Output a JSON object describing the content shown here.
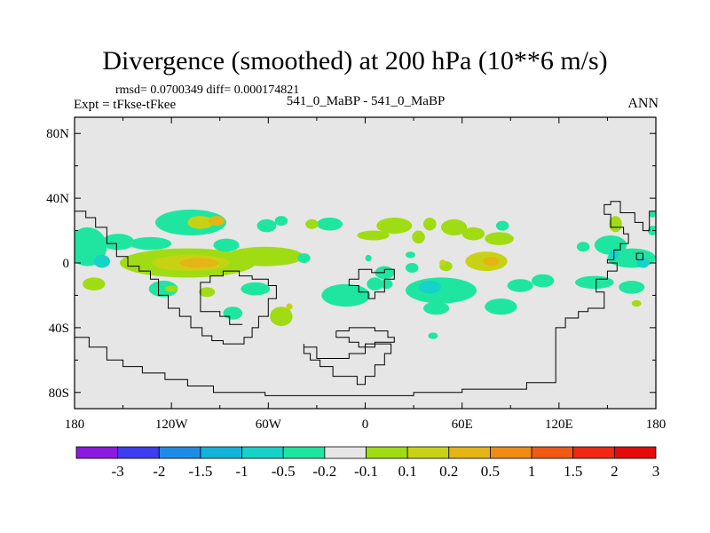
{
  "title": "Divergence (smoothed) at 200 hPa (10**6 m/s)",
  "stats": "rmsd= 0.0700349 diff= 0.000174821",
  "experiment": "Expt = tFkse-tFkee",
  "case": "541_0_MaBP - 541_0_MaBP",
  "season": "ANN",
  "chart_data": {
    "type": "heatmap",
    "title": "Divergence (smoothed) at 200 hPa (10**6 m/s)",
    "projection": "cylindrical-equidistant",
    "xlim": [
      -180,
      180
    ],
    "ylim": [
      -90,
      90
    ],
    "x_ticks": [
      {
        "value": -180,
        "label": "180"
      },
      {
        "value": -120,
        "label": "120W"
      },
      {
        "value": -60,
        "label": "60W"
      },
      {
        "value": 0,
        "label": "0"
      },
      {
        "value": 60,
        "label": "60E"
      },
      {
        "value": 120,
        "label": "120E"
      },
      {
        "value": 180,
        "label": "180"
      }
    ],
    "y_ticks": [
      {
        "value": 80,
        "label": "80N"
      },
      {
        "value": 40,
        "label": "40N"
      },
      {
        "value": 0,
        "label": "0"
      },
      {
        "value": -40,
        "label": "40S"
      },
      {
        "value": -80,
        "label": "80S"
      }
    ],
    "background_color": "#e6e6e6",
    "colorbar": {
      "labels": [
        "-3",
        "-2",
        "-1.5",
        "-1",
        "-0.5",
        "-0.2",
        "-0.1",
        "0.1",
        "0.2",
        "0.5",
        "1",
        "1.5",
        "2",
        "3"
      ],
      "colors": [
        "#8c1ae0",
        "#3c3cf0",
        "#1e8ce6",
        "#12b4dc",
        "#16d2c8",
        "#1ee6a0",
        "#e6e6e6",
        "#a0dc14",
        "#c8d214",
        "#e6b414",
        "#f08c14",
        "#f05a14",
        "#f02814",
        "#e60a0a"
      ]
    },
    "regions": [
      {
        "lon": -172,
        "lat": 10,
        "rlon": 12,
        "rlat": 12,
        "color": "#1ee6a0"
      },
      {
        "lon": -163,
        "lat": 1,
        "rlon": 5,
        "rlat": 4,
        "color": "#16d2c8"
      },
      {
        "lon": -153,
        "lat": 13,
        "rlon": 10,
        "rlat": 5,
        "color": "#1ee6a0"
      },
      {
        "lon": -108,
        "lat": 25,
        "rlon": 22,
        "rlat": 8,
        "color": "#1ee6a0"
      },
      {
        "lon": -102,
        "lat": 25,
        "rlon": 8,
        "rlat": 4,
        "color": "#c8d214"
      },
      {
        "lon": -92,
        "lat": 26,
        "rlon": 5,
        "rlat": 3,
        "color": "#e6b414"
      },
      {
        "lon": -110,
        "lat": 0,
        "rlon": 42,
        "rlat": 9,
        "color": "#a0dc14"
      },
      {
        "lon": -108,
        "lat": 0,
        "rlon": 24,
        "rlat": 5,
        "color": "#c8d214"
      },
      {
        "lon": -103,
        "lat": 0,
        "rlon": 12,
        "rlat": 3,
        "color": "#e6b414"
      },
      {
        "lon": -133,
        "lat": 12,
        "rlon": 13,
        "rlat": 4,
        "color": "#1ee6a0"
      },
      {
        "lon": -62,
        "lat": 4,
        "rlon": 24,
        "rlat": 6,
        "color": "#a0dc14"
      },
      {
        "lon": -86,
        "lat": 11,
        "rlon": 8,
        "rlat": 4,
        "color": "#1ee6a0"
      },
      {
        "lon": -38,
        "lat": 3,
        "rlon": 4,
        "rlat": 3,
        "color": "#1ee6a0"
      },
      {
        "lon": -61,
        "lat": 23,
        "rlon": 6,
        "rlat": 4,
        "color": "#1ee6a0"
      },
      {
        "lon": -22,
        "lat": 24,
        "rlon": 8,
        "rlat": 4,
        "color": "#1ee6a0"
      },
      {
        "lon": -52,
        "lat": 26,
        "rlon": 4,
        "rlat": 3,
        "color": "#1ee6a0"
      },
      {
        "lon": -33,
        "lat": 24,
        "rlon": 4,
        "rlat": 3,
        "color": "#a0dc14"
      },
      {
        "lon": -168,
        "lat": -13,
        "rlon": 7,
        "rlat": 4,
        "color": "#a0dc14"
      },
      {
        "lon": -125,
        "lat": -16,
        "rlon": 9,
        "rlat": 5,
        "color": "#1ee6a0"
      },
      {
        "lon": -120,
        "lat": -16,
        "rlon": 4,
        "rlat": 2,
        "color": "#a0dc14"
      },
      {
        "lon": -98,
        "lat": -18,
        "rlon": 5,
        "rlat": 3,
        "color": "#a0dc14"
      },
      {
        "lon": -82,
        "lat": -31,
        "rlon": 6,
        "rlat": 4,
        "color": "#1ee6a0"
      },
      {
        "lon": -68,
        "lat": -16,
        "rlon": 9,
        "rlat": 4,
        "color": "#1ee6a0"
      },
      {
        "lon": -52,
        "lat": -33,
        "rlon": 7,
        "rlat": 6,
        "color": "#a0dc14"
      },
      {
        "lon": -47,
        "lat": -27,
        "rlon": 2,
        "rlat": 2,
        "color": "#c8d214"
      },
      {
        "lon": -12,
        "lat": -20,
        "rlon": 15,
        "rlat": 7,
        "color": "#1ee6a0"
      },
      {
        "lon": 6,
        "lat": -13,
        "rlon": 5,
        "rlat": 4,
        "color": "#1ee6a0"
      },
      {
        "lon": 13,
        "lat": -13,
        "rlon": 4,
        "rlat": 3,
        "color": "#1ee6a0"
      },
      {
        "lon": 18,
        "lat": 23,
        "rlon": 11,
        "rlat": 5,
        "color": "#a0dc14"
      },
      {
        "lon": 5,
        "lat": 17,
        "rlon": 10,
        "rlat": 3,
        "color": "#a0dc14"
      },
      {
        "lon": 12,
        "lat": -6,
        "rlon": 6,
        "rlat": 4,
        "color": "#1ee6a0"
      },
      {
        "lon": 2,
        "lat": 3,
        "rlon": 2,
        "rlat": 2,
        "color": "#1ee6a0"
      },
      {
        "lon": 29,
        "lat": -3,
        "rlon": 4,
        "rlat": 3,
        "color": "#1ee6a0"
      },
      {
        "lon": 28,
        "lat": 5,
        "rlon": 3,
        "rlat": 2,
        "color": "#1ee6a0"
      },
      {
        "lon": 33,
        "lat": 16,
        "rlon": 4,
        "rlat": 4,
        "color": "#a0dc14"
      },
      {
        "lon": 40,
        "lat": 24,
        "rlon": 4,
        "rlat": 4,
        "color": "#a0dc14"
      },
      {
        "lon": 55,
        "lat": 22,
        "rlon": 8,
        "rlat": 5,
        "color": "#a0dc14"
      },
      {
        "lon": 67,
        "lat": 18,
        "rlon": 7,
        "rlat": 4,
        "color": "#a0dc14"
      },
      {
        "lon": 83,
        "lat": 15,
        "rlon": 9,
        "rlat": 4,
        "color": "#a0dc14"
      },
      {
        "lon": 85,
        "lat": 23,
        "rlon": 4,
        "rlat": 3,
        "color": "#1ee6a0"
      },
      {
        "lon": 47,
        "lat": -17,
        "rlon": 22,
        "rlat": 8,
        "color": "#1ee6a0"
      },
      {
        "lon": 40,
        "lat": -15,
        "rlon": 7,
        "rlat": 4,
        "color": "#16d2c8"
      },
      {
        "lon": 44,
        "lat": -28,
        "rlon": 8,
        "rlat": 4,
        "color": "#1ee6a0"
      },
      {
        "lon": 84,
        "lat": -27,
        "rlon": 10,
        "rlat": 5,
        "color": "#1ee6a0"
      },
      {
        "lon": 42,
        "lat": -45,
        "rlon": 3,
        "rlat": 2,
        "color": "#1ee6a0"
      },
      {
        "lon": 75,
        "lat": 1,
        "rlon": 13,
        "rlat": 6,
        "color": "#c8d214"
      },
      {
        "lon": 78,
        "lat": 1,
        "rlon": 5,
        "rlat": 3,
        "color": "#e6b414"
      },
      {
        "lon": 50,
        "lat": -2,
        "rlon": 4,
        "rlat": 3,
        "color": "#a0dc14"
      },
      {
        "lon": 48,
        "lat": 0,
        "rlon": 2,
        "rlat": 2,
        "color": "#c8d214"
      },
      {
        "lon": 96,
        "lat": -14,
        "rlon": 8,
        "rlat": 4,
        "color": "#1ee6a0"
      },
      {
        "lon": 110,
        "lat": -11,
        "rlon": 7,
        "rlat": 4,
        "color": "#1ee6a0"
      },
      {
        "lon": 152,
        "lat": 11,
        "rlon": 10,
        "rlat": 6,
        "color": "#1ee6a0"
      },
      {
        "lon": 165,
        "lat": 3,
        "rlon": 15,
        "rlat": 6,
        "color": "#1ee6a0"
      },
      {
        "lon": 154,
        "lat": 5,
        "rlon": 3,
        "rlat": 3,
        "color": "#16d2c8"
      },
      {
        "lon": 155,
        "lat": 24,
        "rlon": 4,
        "rlat": 5,
        "color": "#a0dc14"
      },
      {
        "lon": 172,
        "lat": 0,
        "rlon": 4,
        "rlat": 3,
        "color": "#16d2c8"
      },
      {
        "lon": 135,
        "lat": 10,
        "rlon": 4,
        "rlat": 3,
        "color": "#1ee6a0"
      },
      {
        "lon": 142,
        "lat": -12,
        "rlon": 12,
        "rlat": 4,
        "color": "#1ee6a0"
      },
      {
        "lon": 165,
        "lat": -15,
        "rlon": 8,
        "rlat": 4,
        "color": "#1ee6a0"
      },
      {
        "lon": 168,
        "lat": -25,
        "rlon": 3,
        "rlat": 2,
        "color": "#a0dc14"
      },
      {
        "lon": 178,
        "lat": 20,
        "rlon": 3,
        "rlat": 3,
        "color": "#1ee6a0"
      },
      {
        "lon": 178,
        "lat": 30,
        "rlon": 2,
        "rlat": 2,
        "color": "#1ee6a0"
      }
    ],
    "coastlines": [
      [
        [
          -180,
          32
        ],
        [
          -173,
          32
        ],
        [
          -173,
          28
        ],
        [
          -167,
          28
        ],
        [
          -167,
          22
        ],
        [
          -160,
          22
        ],
        [
          -160,
          12
        ],
        [
          -154,
          12
        ],
        [
          -154,
          4
        ],
        [
          -147,
          4
        ],
        [
          -147,
          -2
        ],
        [
          -140,
          -2
        ],
        [
          -140,
          -5
        ],
        [
          -133,
          -5
        ],
        [
          -133,
          -10
        ],
        [
          -128,
          -10
        ],
        [
          -128,
          -20
        ],
        [
          -122,
          -20
        ],
        [
          -122,
          -28
        ],
        [
          -115,
          -28
        ],
        [
          -115,
          -33
        ],
        [
          -108,
          -33
        ],
        [
          -108,
          -40
        ],
        [
          -101,
          -40
        ],
        [
          -101,
          -45
        ],
        [
          -95,
          -45
        ],
        [
          -95,
          -48
        ],
        [
          -88,
          -48
        ],
        [
          -88,
          -50
        ],
        [
          -75,
          -50
        ],
        [
          -75,
          -46
        ],
        [
          -70,
          -46
        ],
        [
          -70,
          -40
        ],
        [
          -66,
          -40
        ],
        [
          -66,
          -33
        ],
        [
          -60,
          -33
        ],
        [
          -60,
          -22
        ],
        [
          -55,
          -22
        ],
        [
          -55,
          -14
        ],
        [
          -60,
          -14
        ],
        [
          -60,
          -10
        ],
        [
          -70,
          -10
        ],
        [
          -70,
          -8
        ],
        [
          -78,
          -8
        ],
        [
          -78,
          -5
        ],
        [
          -88,
          -5
        ],
        [
          -88,
          -8
        ],
        [
          -96,
          -8
        ],
        [
          -96,
          -12
        ],
        [
          -102,
          -12
        ],
        [
          -102,
          -30
        ],
        [
          -90,
          -30
        ],
        [
          -90,
          -33
        ],
        [
          -84,
          -33
        ],
        [
          -84,
          -38
        ],
        [
          -76,
          -38
        ]
      ],
      [
        [
          -180,
          -46
        ],
        [
          -171,
          -46
        ],
        [
          -171,
          -52
        ],
        [
          -160,
          -52
        ],
        [
          -160,
          -60
        ],
        [
          -150,
          -60
        ],
        [
          -150,
          -64
        ],
        [
          -138,
          -64
        ],
        [
          -138,
          -68
        ],
        [
          -124,
          -68
        ],
        [
          -124,
          -72
        ],
        [
          -110,
          -72
        ],
        [
          -110,
          -76
        ],
        [
          -94,
          -76
        ],
        [
          -94,
          -80
        ],
        [
          -62,
          -80
        ],
        [
          -62,
          -82
        ],
        [
          30,
          -82
        ],
        [
          30,
          -80
        ],
        [
          60,
          -80
        ],
        [
          60,
          -78
        ],
        [
          100,
          -78
        ],
        [
          100,
          -74
        ],
        [
          118,
          -74
        ],
        [
          118,
          -40
        ],
        [
          124,
          -40
        ],
        [
          124,
          -34
        ],
        [
          132,
          -34
        ],
        [
          132,
          -30
        ],
        [
          138,
          -30
        ],
        [
          138,
          -28
        ],
        [
          148,
          -28
        ],
        [
          148,
          -18
        ],
        [
          143,
          -18
        ],
        [
          143,
          -10
        ],
        [
          150,
          -10
        ],
        [
          150,
          -5
        ],
        [
          156,
          -5
        ],
        [
          156,
          0
        ],
        [
          150,
          0
        ],
        [
          150,
          2
        ],
        [
          154,
          2
        ],
        [
          154,
          8
        ],
        [
          158,
          8
        ],
        [
          158,
          12
        ],
        [
          163,
          12
        ],
        [
          163,
          18
        ],
        [
          160,
          18
        ],
        [
          160,
          22
        ],
        [
          152,
          22
        ],
        [
          152,
          30
        ],
        [
          148,
          30
        ],
        [
          148,
          36
        ],
        [
          152,
          36
        ],
        [
          152,
          38
        ],
        [
          158,
          38
        ],
        [
          158,
          31
        ],
        [
          167,
          31
        ],
        [
          167,
          25
        ],
        [
          172,
          25
        ],
        [
          172,
          20
        ],
        [
          176,
          20
        ],
        [
          176,
          32
        ],
        [
          180,
          32
        ]
      ],
      [
        [
          -38,
          -50
        ],
        [
          -38,
          -56
        ],
        [
          -34,
          -56
        ],
        [
          -34,
          -60
        ],
        [
          -28,
          -60
        ],
        [
          -28,
          -64
        ],
        [
          -20,
          -64
        ],
        [
          -20,
          -70
        ],
        [
          -5,
          -70
        ],
        [
          -5,
          -75
        ],
        [
          0,
          -75
        ],
        [
          0,
          -70
        ],
        [
          6,
          -70
        ],
        [
          6,
          -63
        ],
        [
          12,
          -63
        ],
        [
          12,
          -56
        ],
        [
          16,
          -56
        ],
        [
          16,
          -50
        ],
        [
          0,
          -50
        ],
        [
          0,
          -56
        ],
        [
          -10,
          -56
        ],
        [
          -10,
          -59
        ],
        [
          -30,
          -59
        ],
        [
          -30,
          -52
        ],
        [
          -38,
          -52
        ]
      ],
      [
        [
          -18,
          -42
        ],
        [
          -18,
          -46
        ],
        [
          -10,
          -46
        ],
        [
          -10,
          -49
        ],
        [
          -4,
          -49
        ],
        [
          -4,
          -52
        ],
        [
          6,
          -52
        ],
        [
          6,
          -49
        ],
        [
          18,
          -49
        ],
        [
          18,
          -46
        ],
        [
          14,
          -46
        ],
        [
          14,
          -42
        ],
        [
          6,
          -42
        ],
        [
          6,
          -40
        ],
        [
          -10,
          -40
        ],
        [
          -10,
          -42
        ],
        [
          -18,
          -42
        ]
      ],
      [
        [
          -10,
          -10
        ],
        [
          -10,
          -14
        ],
        [
          -4,
          -14
        ],
        [
          -4,
          -18
        ],
        [
          2,
          -18
        ],
        [
          2,
          -22
        ],
        [
          6,
          -22
        ],
        [
          6,
          -18
        ],
        [
          12,
          -18
        ],
        [
          12,
          -10
        ],
        [
          18,
          -10
        ],
        [
          18,
          -4
        ],
        [
          12,
          -4
        ],
        [
          12,
          -6
        ],
        [
          4,
          -6
        ],
        [
          4,
          -4
        ],
        [
          -4,
          -4
        ],
        [
          -4,
          -10
        ],
        [
          -10,
          -10
        ]
      ],
      [
        [
          168,
          2
        ],
        [
          172,
          2
        ],
        [
          172,
          6
        ],
        [
          168,
          6
        ],
        [
          168,
          2
        ]
      ]
    ]
  }
}
